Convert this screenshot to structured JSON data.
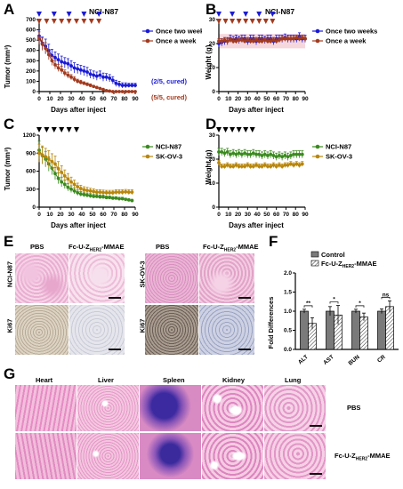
{
  "panels": {
    "A": {
      "label": "A",
      "title": "NCI-N87",
      "xlabel": "Days after inject",
      "ylabel": "Tumor (mm³)",
      "legend": [
        {
          "name": "Once two weeks",
          "color": "#1a1ad6"
        },
        {
          "name": "Once a week",
          "color": "#a33a1e"
        }
      ],
      "annotations": [
        {
          "text": "(2/5, cured)",
          "color": "#1a1ad6"
        },
        {
          "text": "(5/5, cured)",
          "color": "#a33a1e"
        }
      ],
      "yticks": [
        "0",
        "100",
        "200",
        "300",
        "400",
        "500",
        "600",
        "700"
      ],
      "xticks": [
        "0",
        "10",
        "20",
        "30",
        "40",
        "50",
        "60",
        "70",
        "80",
        "90"
      ]
    },
    "B": {
      "label": "B",
      "title": "NCI-N87",
      "xlabel": "Days after inject",
      "ylabel": "Weight (g)",
      "legend": [
        {
          "name": "Once two weeks",
          "color": "#1a1ad6"
        },
        {
          "name": "Once a week",
          "color": "#a33a1e"
        }
      ],
      "yticks": [
        "0",
        "10",
        "20",
        "30"
      ],
      "xticks": [
        "0",
        "10",
        "20",
        "30",
        "40",
        "50",
        "60",
        "70",
        "80",
        "90"
      ]
    },
    "C": {
      "label": "C",
      "xlabel": "Days after inject",
      "ylabel": "Tumor (mm³)",
      "legend": [
        {
          "name": "NCI-N87",
          "color": "#3a8a1e"
        },
        {
          "name": "SK-OV-3",
          "color": "#b8860b"
        }
      ],
      "yticks": [
        "0",
        "300",
        "600",
        "900",
        "1200"
      ],
      "xticks": [
        "0",
        "10",
        "20",
        "30",
        "40",
        "50",
        "60",
        "70",
        "80",
        "90"
      ]
    },
    "D": {
      "label": "D",
      "xlabel": "Days after inject",
      "ylabel": "Weight (g)",
      "legend": [
        {
          "name": "NCI-N87",
          "color": "#3a8a1e"
        },
        {
          "name": "SK-OV-3",
          "color": "#b8860b"
        }
      ],
      "yticks": [
        "0",
        "10",
        "20",
        "30"
      ],
      "xticks": [
        "0",
        "10",
        "20",
        "30",
        "40",
        "50",
        "60",
        "70",
        "80",
        "90"
      ]
    },
    "E": {
      "label": "E",
      "col_pbs": "PBS",
      "col_drug_prefix": "Fc-U-Z",
      "col_drug_sub": "HER2",
      "col_drug_suffix": "-MMAE",
      "row_left": "NCI-N87",
      "row_right": "SK-OV-3",
      "row_bottom": "Ki67"
    },
    "F": {
      "label": "F",
      "ylabel": "Fold Differences",
      "legend": [
        {
          "name": "Control",
          "color": "#7a7a7a"
        },
        {
          "name_prefix": "Fc-U-Z",
          "name_sub": "HER2",
          "name_suffix": "-MMAE",
          "color": "#ffffff"
        }
      ],
      "yticks": [
        "0.0",
        "0.5",
        "1.0",
        "1.5",
        "2.0"
      ],
      "sig": [
        "**",
        "*",
        "*",
        "ns"
      ]
    },
    "G": {
      "label": "G",
      "organs": [
        "Heart",
        "Liver",
        "Spleen",
        "Kidney",
        "Lung"
      ],
      "row_pbs": "PBS",
      "row_drug_prefix": "Fc-U-Z",
      "row_drug_sub": "HER2",
      "row_drug_suffix": "-MMAE"
    }
  },
  "chart_data": [
    {
      "id": "A",
      "type": "line",
      "xlim": [
        0,
        90
      ],
      "ylim": [
        0,
        700
      ],
      "series": [
        {
          "name": "Once two weeks",
          "color": "#1a1ad6",
          "x": [
            0,
            3,
            6,
            9,
            12,
            15,
            18,
            21,
            24,
            27,
            30,
            33,
            36,
            39,
            42,
            45,
            48,
            51,
            54,
            57,
            60,
            63,
            66,
            69,
            72,
            75,
            78,
            81,
            84,
            87,
            90
          ],
          "y": [
            540,
            470,
            440,
            400,
            350,
            330,
            310,
            290,
            280,
            270,
            250,
            230,
            220,
            210,
            200,
            190,
            170,
            160,
            150,
            160,
            140,
            140,
            130,
            110,
            80,
            70,
            60,
            60,
            60,
            60,
            60
          ],
          "err": [
            60,
            60,
            70,
            60,
            60,
            55,
            55,
            55,
            50,
            50,
            50,
            50,
            45,
            45,
            45,
            45,
            40,
            40,
            40,
            40,
            40,
            35,
            35,
            35,
            30,
            30,
            25,
            25,
            20,
            20,
            20
          ]
        },
        {
          "name": "Once a week",
          "color": "#a33a1e",
          "x": [
            0,
            3,
            6,
            9,
            12,
            15,
            18,
            21,
            24,
            27,
            30,
            33,
            36,
            39,
            42,
            45,
            48,
            51,
            54,
            57,
            60,
            63,
            66,
            69,
            72,
            75,
            78,
            81,
            84,
            87,
            90
          ],
          "y": [
            520,
            460,
            420,
            360,
            300,
            260,
            230,
            210,
            180,
            160,
            140,
            120,
            100,
            90,
            80,
            70,
            60,
            50,
            40,
            30,
            20,
            10,
            5,
            0,
            0,
            0,
            0,
            0,
            0,
            0,
            0
          ],
          "err": [
            60,
            60,
            55,
            50,
            45,
            40,
            35,
            35,
            30,
            30,
            25,
            25,
            20,
            20,
            15,
            15,
            15,
            10,
            10,
            10,
            8,
            5,
            5,
            0,
            0,
            0,
            0,
            0,
            0,
            0,
            0
          ]
        }
      ],
      "markers_top": {
        "Once two weeks": [
          0,
          14,
          28,
          42,
          56
        ],
        "Once a week": [
          0,
          7,
          14,
          21,
          28,
          35,
          42,
          49,
          56
        ]
      }
    },
    {
      "id": "B",
      "type": "line",
      "xlim": [
        0,
        90
      ],
      "ylim": [
        0,
        30
      ],
      "series": [
        {
          "name": "Once two weeks",
          "color": "#1a1ad6",
          "x": [
            0,
            3,
            6,
            9,
            12,
            15,
            18,
            21,
            24,
            27,
            30,
            33,
            36,
            39,
            42,
            45,
            48,
            51,
            54,
            57,
            60,
            63,
            66,
            69,
            72,
            75,
            78,
            81,
            84,
            87,
            90
          ],
          "y": [
            20,
            20.5,
            21,
            21,
            22,
            21.5,
            22,
            21.5,
            22,
            22,
            21,
            22,
            22,
            21,
            22,
            22,
            21.5,
            22,
            22,
            21,
            22,
            22,
            22,
            22.5,
            22,
            22,
            22,
            22,
            23,
            22,
            22
          ],
          "err": [
            1.5,
            1.5,
            1.5,
            1.5,
            1.5,
            1.5,
            1.5,
            1.5,
            1.5,
            1.5,
            1.5,
            1.5,
            1.5,
            1.5,
            1.5,
            1.5,
            1.5,
            1.5,
            1.5,
            1.5,
            1.5,
            1.5,
            1.5,
            1.5,
            1.5,
            1.5,
            1.5,
            1.5,
            1.5,
            1.5,
            1.5
          ]
        },
        {
          "name": "Once a week",
          "color": "#a33a1e",
          "x": [
            0,
            3,
            6,
            9,
            12,
            15,
            18,
            21,
            24,
            27,
            30,
            33,
            36,
            39,
            42,
            45,
            48,
            51,
            54,
            57,
            60,
            63,
            66,
            69,
            72,
            75,
            78,
            81,
            84,
            87,
            90
          ],
          "y": [
            21,
            21,
            21.5,
            21,
            21.5,
            21,
            21,
            21.5,
            21.5,
            21,
            21.5,
            21,
            21,
            21.5,
            21,
            21,
            21.5,
            21,
            21,
            21.5,
            21,
            21.5,
            22,
            22,
            22,
            22,
            22,
            22.5,
            22,
            22.5,
            22
          ],
          "err": [
            1,
            1,
            1,
            1,
            1,
            1,
            1,
            1,
            1,
            1,
            1,
            1,
            1,
            1,
            1,
            1,
            1,
            1,
            1,
            1,
            1,
            1,
            1,
            1,
            1,
            1,
            1,
            1,
            1,
            1,
            1
          ]
        }
      ],
      "markers_top": {
        "Once two weeks": [
          0,
          14,
          28,
          42,
          56
        ],
        "Once a week": [
          0,
          7,
          14,
          21,
          28,
          35,
          42,
          49,
          56
        ]
      }
    },
    {
      "id": "C",
      "type": "line",
      "xlim": [
        0,
        90
      ],
      "ylim": [
        0,
        1200
      ],
      "series": [
        {
          "name": "NCI-N87",
          "color": "#3a8a1e",
          "x": [
            0,
            3,
            6,
            9,
            12,
            15,
            18,
            21,
            24,
            27,
            30,
            33,
            36,
            39,
            42,
            45,
            48,
            51,
            54,
            57,
            60,
            63,
            66,
            69,
            72,
            75,
            78,
            81,
            84,
            87
          ],
          "y": [
            950,
            860,
            800,
            720,
            650,
            560,
            480,
            420,
            380,
            330,
            300,
            270,
            240,
            220,
            210,
            200,
            190,
            180,
            180,
            170,
            170,
            160,
            160,
            150,
            150,
            140,
            140,
            130,
            120,
            110
          ],
          "err": [
            150,
            140,
            130,
            120,
            110,
            100,
            90,
            80,
            70,
            60,
            55,
            50,
            45,
            40,
            40,
            35,
            35,
            30,
            30,
            30,
            30,
            25,
            25,
            25,
            25,
            25,
            25,
            20,
            20,
            20
          ]
        },
        {
          "name": "SK-OV-3",
          "color": "#b8860b",
          "x": [
            0,
            3,
            6,
            9,
            12,
            15,
            18,
            21,
            24,
            27,
            30,
            33,
            36,
            39,
            42,
            45,
            48,
            51,
            54,
            57,
            60,
            63,
            66,
            69,
            72,
            75,
            78,
            81,
            84,
            87
          ],
          "y": [
            900,
            870,
            840,
            800,
            760,
            720,
            640,
            580,
            520,
            470,
            420,
            380,
            340,
            310,
            290,
            280,
            270,
            260,
            250,
            250,
            245,
            240,
            240,
            240,
            250,
            250,
            250,
            255,
            250,
            250
          ],
          "err": [
            150,
            150,
            140,
            140,
            130,
            130,
            120,
            110,
            100,
            90,
            80,
            70,
            60,
            55,
            50,
            50,
            45,
            45,
            40,
            40,
            40,
            40,
            40,
            40,
            40,
            40,
            40,
            40,
            40,
            40
          ]
        }
      ],
      "markers_top": {
        "doses": [
          0,
          7,
          14,
          21,
          28,
          35
        ]
      }
    },
    {
      "id": "D",
      "type": "line",
      "xlim": [
        0,
        90
      ],
      "ylim": [
        0,
        30
      ],
      "series": [
        {
          "name": "NCI-N87",
          "color": "#3a8a1e",
          "x": [
            0,
            3,
            6,
            9,
            12,
            15,
            18,
            21,
            24,
            27,
            30,
            33,
            36,
            39,
            42,
            45,
            48,
            51,
            54,
            57,
            60,
            63,
            66,
            69,
            72,
            75,
            78,
            81,
            84,
            87
          ],
          "y": [
            23,
            23,
            22.5,
            23,
            22,
            22.5,
            22,
            22.5,
            22,
            22.5,
            22,
            22,
            22.5,
            22,
            22,
            21.5,
            22,
            21.5,
            22,
            21.5,
            21,
            21.5,
            21,
            21.5,
            21,
            21.5,
            22,
            22,
            22,
            22
          ],
          "err": [
            1.5,
            1.5,
            1.5,
            1.5,
            1.5,
            1.5,
            1.5,
            1.5,
            1.5,
            1.5,
            1.5,
            1.5,
            1.5,
            1.5,
            1.5,
            1.5,
            1.5,
            1.5,
            1.5,
            1.5,
            1.5,
            1.5,
            1.5,
            1.5,
            1.5,
            1.5,
            1.5,
            1.5,
            1.5,
            1.5
          ]
        },
        {
          "name": "SK-OV-3",
          "color": "#b8860b",
          "x": [
            0,
            3,
            6,
            9,
            12,
            15,
            18,
            21,
            24,
            27,
            30,
            33,
            36,
            39,
            42,
            45,
            48,
            51,
            54,
            57,
            60,
            63,
            66,
            69,
            72,
            75,
            78,
            81,
            84,
            87
          ],
          "y": [
            18.5,
            17,
            17,
            17.5,
            17,
            17,
            17.5,
            17,
            17,
            17,
            17.5,
            17,
            17,
            17.5,
            17,
            17,
            17.5,
            17,
            17,
            17.5,
            17,
            17.5,
            17,
            17.5,
            17.5,
            18,
            17.5,
            18,
            17.5,
            18
          ],
          "err": [
            1,
            1,
            1,
            1,
            1,
            1,
            1,
            1,
            1,
            1,
            1,
            1,
            1,
            1,
            1,
            1,
            1,
            1,
            1,
            1,
            1,
            1,
            1,
            1,
            1,
            1,
            1,
            1,
            1,
            1
          ]
        }
      ],
      "markers_top": {
        "doses": [
          0,
          7,
          14,
          21,
          28,
          35
        ]
      }
    },
    {
      "id": "F",
      "type": "bar",
      "categories": [
        "ALT",
        "AST",
        "BUN",
        "CR"
      ],
      "ylim": [
        0,
        2.0
      ],
      "series": [
        {
          "name": "Control",
          "values": [
            1.0,
            1.0,
            1.0,
            1.0
          ],
          "err": [
            0.05,
            0.12,
            0.05,
            0.06
          ]
        },
        {
          "name": "Fc-U-ZHER2-MMAE",
          "values": [
            0.68,
            0.9,
            0.85,
            1.12
          ],
          "err": [
            0.15,
            0.25,
            0.1,
            0.15
          ]
        }
      ]
    }
  ]
}
